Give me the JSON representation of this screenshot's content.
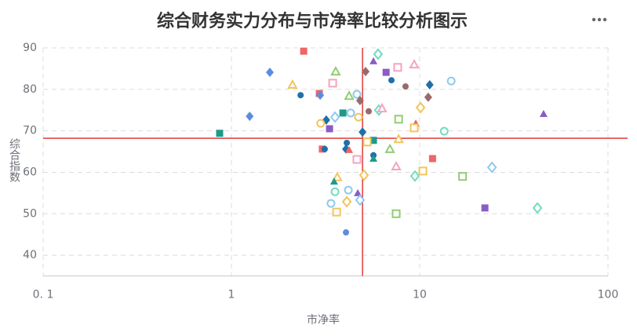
{
  "chart_data": {
    "type": "scatter",
    "title": "综合财务实力分布与市净率比较分析图示",
    "x_label": "市净率",
    "y_label": "综合指数",
    "xscale": "log",
    "xlim": [
      0.1,
      100
    ],
    "xticks": [
      {
        "value": 0.1,
        "label": "0. 1"
      },
      1,
      10,
      100
    ],
    "ylim": [
      35,
      90
    ],
    "yticks": [
      40,
      50,
      60,
      70,
      80,
      90
    ],
    "grid": true,
    "reference_lines": {
      "x": 4.97,
      "y": 68.2,
      "color": "#e03a3a"
    },
    "x": [
      2.42,
      6.01,
      5.68,
      9.35,
      7.64,
      3.58,
      5.16,
      6.63,
      1.6,
      14.7,
      7.08,
      11.3,
      2.11,
      3.45,
      8.41,
      2.33,
      2.93,
      2.96,
      4.22,
      4.64,
      11.1,
      4.82,
      1.25,
      3.55,
      4.3,
      3.91,
      4.73,
      5.36,
      6.07,
      6.31,
      10.1,
      45.5,
      7.73,
      3.19,
      2.98,
      3.32,
      9.53,
      9.35,
      13.5,
      4.97,
      0.866,
      7.73,
      5.68,
      4.1,
      5.26,
      3.04,
      3.13,
      4.06,
      4.22,
      6.95,
      5.68,
      5.68,
      4.64,
      11.7,
      24.2,
      7.5,
      10.4,
      16.9,
      9.44,
      5.06,
      3.65,
      3.51,
      4.18,
      3.55,
      4.69,
      4.82,
      4.1,
      3.38,
      3.62,
      7.5,
      22.2,
      42.2,
      4.06
    ],
    "y": [
      89.2,
      88.5,
      86.8,
      86.0,
      85.3,
      84.3,
      84.3,
      84.1,
      84.1,
      82.0,
      82.2,
      81.1,
      81.1,
      81.5,
      80.7,
      78.6,
      79.0,
      78.6,
      78.4,
      78.8,
      78.1,
      77.3,
      73.5,
      73.3,
      74.3,
      74.3,
      73.3,
      74.7,
      75.0,
      75.4,
      75.6,
      74.1,
      72.8,
      72.6,
      71.8,
      70.5,
      71.8,
      70.7,
      69.9,
      69.7,
      69.4,
      68.0,
      67.7,
      67.1,
      67.3,
      65.6,
      65.6,
      65.6,
      65.4,
      65.6,
      64.1,
      63.3,
      63.1,
      63.3,
      61.2,
      61.4,
      60.3,
      59.0,
      59.1,
      59.3,
      58.8,
      57.8,
      55.7,
      55.3,
      55.0,
      53.3,
      52.9,
      52.5,
      50.4,
      50.0,
      51.4,
      51.4,
      45.5
    ],
    "colors": [
      "#ee6666",
      "#6fdcc0",
      "#8b5cc4",
      "#f5a3c0",
      "#f5a3c0",
      "#91cc75",
      "#9a6a6a",
      "#8b5cc4",
      "#5a8de0",
      "#8ec9ec",
      "#1f6fa8",
      "#1f6fa8",
      "#f2c55c",
      "#f5a3c0",
      "#9a6a6a",
      "#1f6fa8",
      "#ee6666",
      "#5a8de0",
      "#91cc75",
      "#8ec9ec",
      "#9a6a6a",
      "#9a6a6a",
      "#5a8de0",
      "#8ec9ec",
      "#8ec9ec",
      "#1e9a8a",
      "#f2c55c",
      "#9a6a6a",
      "#6fdcc0",
      "#f5a3c0",
      "#f2c55c",
      "#8b5cc4",
      "#91cc75",
      "#1f6fa8",
      "#f2c55c",
      "#8b5cc4",
      "#ee6666",
      "#f2c55c",
      "#6fdcc0",
      "#1f6fa8",
      "#1e9a8a",
      "#f2c55c",
      "#1e9a8a",
      "#1f6fa8",
      "#f2c55c",
      "#ee6666",
      "#1f6fa8",
      "#1f6fa8",
      "#ee6666",
      "#91cc75",
      "#1f6fa8",
      "#1e9a8a",
      "#f5a3c0",
      "#ee6666",
      "#8ec9ec",
      "#f5a3c0",
      "#f2c55c",
      "#91cc75",
      "#6fdcc0",
      "#f2c55c",
      "#f2c55c",
      "#1e9a8a",
      "#8ec9ec",
      "#6fdcc0",
      "#8b5cc4",
      "#8ec9ec",
      "#f2c55c",
      "#8ec9ec",
      "#f2c55c",
      "#91cc75",
      "#8b5cc4",
      "#6fdcc0",
      "#5a8de0"
    ],
    "markers": [
      "square",
      "emptyDiamond",
      "triangle",
      "emptyTriangle",
      "emptySquare",
      "emptyTriangle",
      "diamond",
      "square",
      "diamond",
      "emptyCircle",
      "circle",
      "diamond",
      "emptyTriangle",
      "emptySquare",
      "circle",
      "circle",
      "square",
      "diamond",
      "emptyTriangle",
      "emptyCircle",
      "diamond",
      "diamond",
      "diamond",
      "emptyDiamond",
      "emptyCircle",
      "square",
      "emptyCircle",
      "circle",
      "emptyDiamond",
      "emptyTriangle",
      "emptyDiamond",
      "triangle",
      "emptySquare",
      "diamond",
      "emptyCircle",
      "square",
      "triangle",
      "emptySquare",
      "emptyCircle",
      "diamond",
      "square",
      "emptyTriangle",
      "square",
      "circle",
      "emptySquare",
      "square",
      "circle",
      "diamond",
      "triangle",
      "emptyTriangle",
      "circle",
      "triangle",
      "emptySquare",
      "square",
      "emptyDiamond",
      "emptyTriangle",
      "emptySquare",
      "emptySquare",
      "emptyDiamond",
      "emptyDiamond",
      "emptyTriangle",
      "triangle",
      "emptyCircle",
      "emptyCircle",
      "triangle",
      "emptyDiamond",
      "emptyDiamond",
      "emptyCircle",
      "emptySquare",
      "emptySquare",
      "square",
      "emptyDiamond",
      "circle"
    ]
  }
}
